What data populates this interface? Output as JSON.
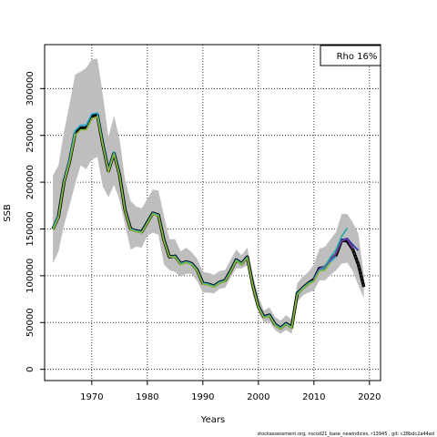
{
  "chart_data": {
    "type": "line",
    "xlabel": "Years",
    "ylabel": "SSB",
    "xlim": [
      1961.5,
      2022
    ],
    "ylim": [
      -12000,
      347000
    ],
    "xticks": [
      1970,
      1980,
      1990,
      2000,
      2010,
      2020
    ],
    "yticks": [
      0,
      50000,
      100000,
      150000,
      200000,
      250000,
      300000
    ],
    "grid": "dotted",
    "legend": {
      "position": "top-right",
      "text": "Rho 16%"
    },
    "footer": "stockassessment.org,  nscod21_base_newindices,  r13945 ,  git: c28bdc2a44ad",
    "band_color": "#bebebe",
    "band": {
      "x": [
        1963,
        1964,
        1965,
        1966,
        1967,
        1968,
        1969,
        1970,
        1971,
        1972,
        1973,
        1974,
        1975,
        1976,
        1977,
        1978,
        1979,
        1980,
        1981,
        1982,
        1983,
        1984,
        1985,
        1986,
        1987,
        1988,
        1989,
        1990,
        1991,
        1992,
        1993,
        1994,
        1995,
        1996,
        1997,
        1998,
        1999,
        2000,
        2001,
        2002,
        2003,
        2004,
        2005,
        2006,
        2007,
        2008,
        2009,
        2010,
        2011,
        2012,
        2013,
        2014,
        2015,
        2016,
        2017,
        2018,
        2019
      ],
      "upper": [
        207000,
        218000,
        254000,
        283000,
        315000,
        318000,
        322000,
        331000,
        332000,
        293000,
        248000,
        271000,
        246000,
        202000,
        180000,
        174000,
        172000,
        182000,
        192000,
        191000,
        164000,
        139000,
        139000,
        126000,
        130000,
        125000,
        118000,
        104000,
        103000,
        101000,
        105000,
        106000,
        117000,
        128000,
        122000,
        130000,
        101000,
        78000,
        63000,
        66000,
        56000,
        52000,
        58000,
        53000,
        92000,
        99000,
        104000,
        112000,
        129000,
        131000,
        139000,
        147000,
        166000,
        166000,
        157000,
        145000,
        100000
      ],
      "lower": [
        113000,
        126000,
        154000,
        175000,
        198000,
        218000,
        214000,
        224000,
        227000,
        195000,
        184000,
        197000,
        181000,
        154000,
        128000,
        131000,
        130000,
        143000,
        146000,
        144000,
        112000,
        106000,
        104000,
        99000,
        102000,
        102000,
        94000,
        82000,
        82000,
        81000,
        86000,
        87000,
        98000,
        108000,
        108000,
        111000,
        80000,
        61000,
        50000,
        51000,
        42000,
        38000,
        42000,
        38000,
        72000,
        79000,
        82000,
        84000,
        95000,
        95000,
        101000,
        106000,
        113000,
        114000,
        105000,
        90000,
        76000
      ]
    },
    "series": [
      {
        "color": "#000000",
        "x": [
          1963,
          1964,
          1965,
          1966,
          1967,
          1968,
          1969,
          1970,
          1971,
          1972,
          1973,
          1974,
          1975,
          1976,
          1977,
          1978,
          1979,
          1980,
          1981,
          1982,
          1983,
          1984,
          1985,
          1986,
          1987,
          1988,
          1989,
          1990,
          1991,
          1992,
          1993,
          1994,
          1995,
          1996,
          1997,
          1998,
          1999,
          2000,
          2001,
          2002,
          2003,
          2004,
          2005,
          2006,
          2007,
          2008,
          2009,
          2010,
          2011,
          2012,
          2013,
          2014,
          2015,
          2016,
          2017,
          2018,
          2019
        ],
        "values": [
          150000,
          163000,
          200000,
          222000,
          252000,
          258000,
          258000,
          270000,
          272000,
          240000,
          212000,
          231000,
          208000,
          170000,
          150000,
          148000,
          147000,
          157000,
          167000,
          165000,
          138000,
          120000,
          121000,
          113000,
          115000,
          113000,
          106000,
          92000,
          91000,
          89000,
          93000,
          95000,
          105000,
          117000,
          113000,
          120000,
          90000,
          67000,
          56000,
          58000,
          48000,
          44000,
          49000,
          45000,
          81000,
          87000,
          92000,
          96000,
          108000,
          109000,
          117000,
          122000,
          138000,
          137000,
          128000,
          112000,
          88000
        ]
      },
      {
        "color": "#2233aa",
        "x": [
          2010,
          2011,
          2012,
          2013,
          2014,
          2015,
          2016,
          2017,
          2018
        ],
        "values": [
          97000,
          108000,
          110000,
          118000,
          124000,
          138000,
          140000,
          133000,
          127000
        ]
      },
      {
        "color": "#22aaaa",
        "x": [
          2010,
          2011,
          2012,
          2013,
          2014,
          2015,
          2016
        ],
        "values": [
          97000,
          107000,
          110000,
          120000,
          128000,
          142000,
          151000
        ]
      },
      {
        "color": "#7a3aa0",
        "x": [
          2010,
          2011,
          2012,
          2013,
          2014,
          2015,
          2016,
          2017
        ],
        "values": [
          96000,
          107000,
          108000,
          117000,
          124000,
          137000,
          139000,
          129000
        ]
      },
      {
        "color": "#22aacc",
        "x": [
          1963,
          1964,
          1965,
          1966,
          1967,
          1968,
          1969,
          1970,
          1971,
          1972,
          1973,
          1974,
          1975,
          1976,
          1977,
          1978,
          1979,
          1980,
          1981,
          1982,
          1983,
          1984,
          1985,
          1986,
          1987,
          1988,
          1989,
          1990,
          1991,
          1992,
          1993,
          1994,
          1995,
          1996,
          1997,
          1998,
          1999,
          2000,
          2001,
          2002,
          2003,
          2004,
          2005,
          2006,
          2007,
          2008,
          2009,
          2010,
          2011,
          2012,
          2013,
          2014
        ],
        "values": [
          151000,
          164000,
          201000,
          224000,
          255000,
          261000,
          261000,
          273000,
          274000,
          241000,
          213000,
          232000,
          208000,
          170000,
          150000,
          148000,
          147000,
          157000,
          167000,
          165000,
          138000,
          120000,
          121000,
          113000,
          115000,
          113000,
          106000,
          92000,
          91000,
          89000,
          93000,
          95000,
          105000,
          117000,
          113000,
          120000,
          90000,
          67000,
          56000,
          58000,
          48000,
          44000,
          49000,
          45000,
          81000,
          87000,
          92000,
          95000,
          106000,
          107000,
          115000,
          121000
        ]
      },
      {
        "color": "#8ab832",
        "x": [
          1963,
          1964,
          1965,
          1966,
          1967,
          1968,
          1969,
          1970,
          1971,
          1972,
          1973,
          1974,
          1975,
          1976,
          1977,
          1978,
          1979,
          1980,
          1981,
          1982,
          1983,
          1984,
          1985,
          1986,
          1987,
          1988,
          1989,
          1990,
          1991,
          1992,
          1993,
          1994,
          1995,
          1996,
          1997,
          1998,
          1999,
          2000,
          2001,
          2002,
          2003,
          2004,
          2005,
          2006,
          2007,
          2008,
          2009,
          2010,
          2011,
          2012,
          2013
        ],
        "values": [
          149000,
          162000,
          199000,
          221000,
          250000,
          256000,
          256000,
          268000,
          270000,
          239000,
          211000,
          230000,
          207000,
          169000,
          149000,
          147000,
          146000,
          156000,
          166000,
          164000,
          137000,
          120000,
          120000,
          112000,
          114000,
          112000,
          105000,
          91000,
          90000,
          88000,
          92000,
          94000,
          104000,
          116000,
          112000,
          119000,
          89000,
          66000,
          55000,
          57000,
          47000,
          43000,
          48000,
          44000,
          80000,
          86000,
          91000,
          94000,
          105000,
          106000,
          114000
        ]
      }
    ]
  }
}
